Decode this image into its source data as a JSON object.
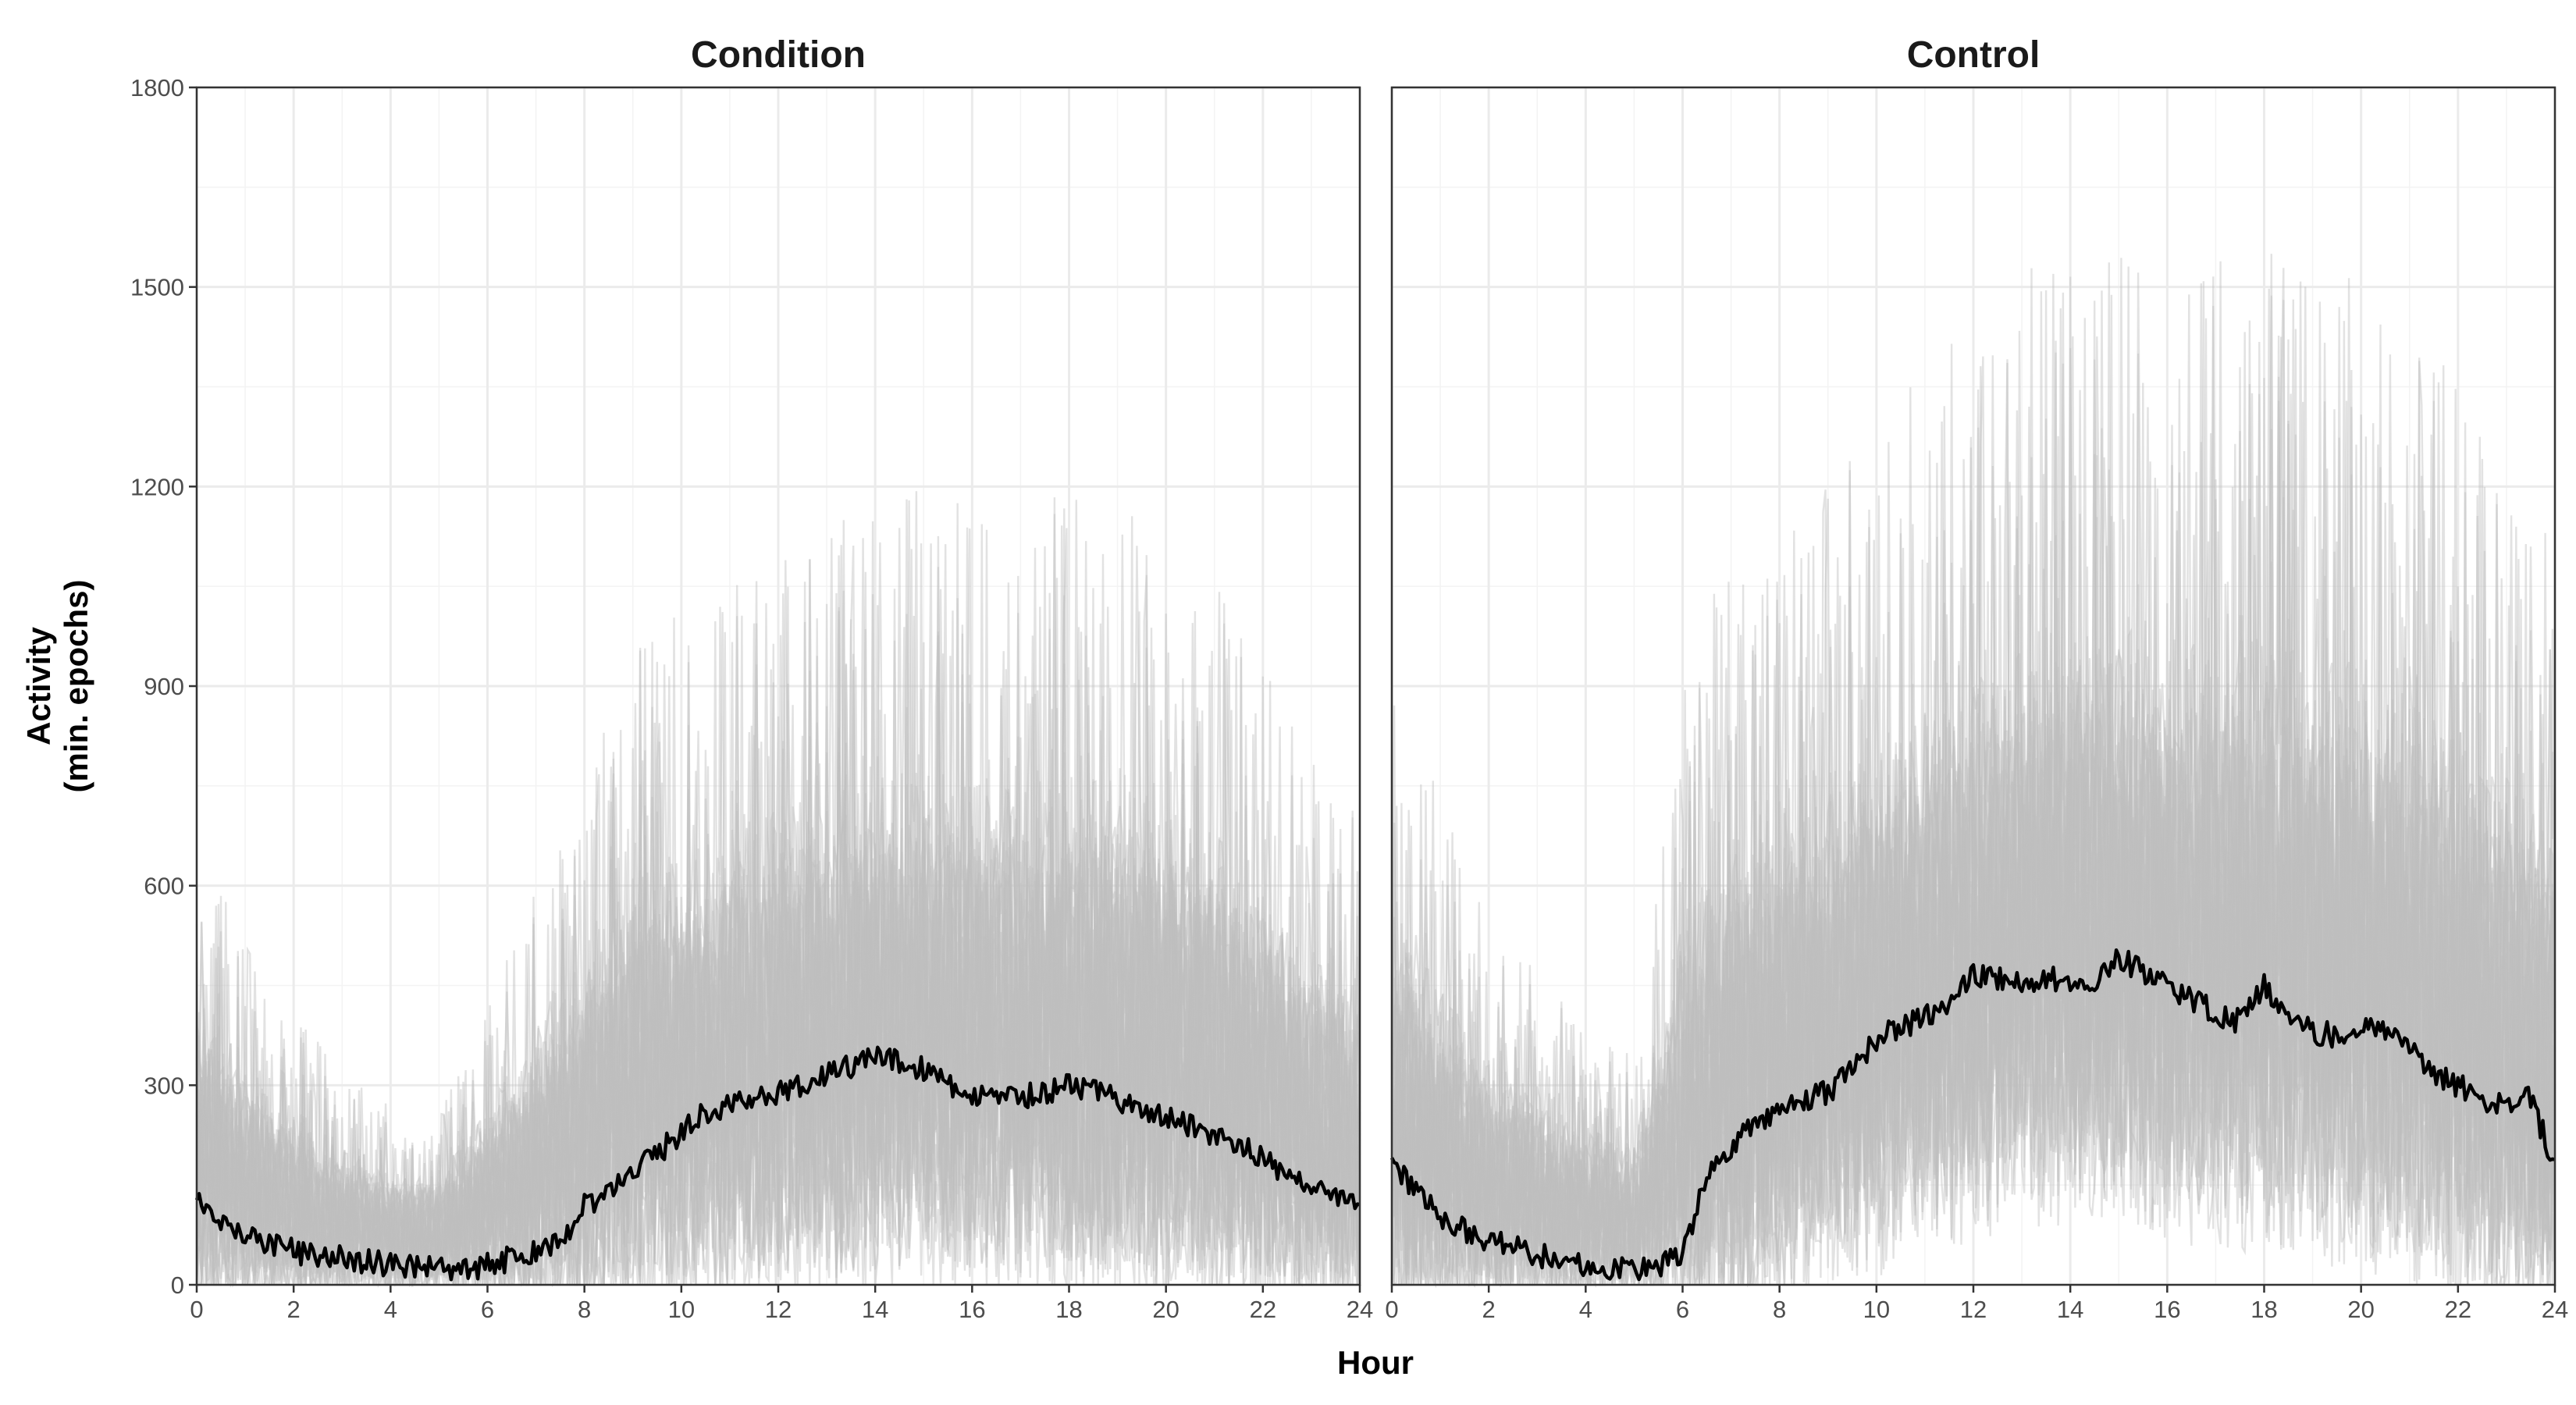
{
  "chart_data": {
    "type": "line",
    "ylabel_line1": "Activity",
    "ylabel_line2": "(min. epochs)",
    "xlabel": "Hour",
    "xlim": [
      0,
      24
    ],
    "ylim": [
      0,
      1800
    ],
    "x_ticks": [
      0,
      2,
      4,
      6,
      8,
      10,
      12,
      14,
      16,
      18,
      20,
      22,
      24
    ],
    "y_ticks": [
      0,
      300,
      600,
      900,
      1200,
      1500,
      1800
    ],
    "grid": true,
    "colors": {
      "individual": "#bebebe",
      "mean": "#000000"
    },
    "panels": [
      {
        "title": "Condition",
        "series": [
          {
            "role": "mean",
            "x": [
              0,
              0.5,
              1,
              1.5,
              2,
              2.5,
              3,
              3.5,
              4,
              4.5,
              5,
              5.5,
              6,
              6.5,
              7,
              7.5,
              8,
              8.5,
              9,
              9.5,
              10,
              10.5,
              11,
              11.5,
              12,
              12.5,
              13,
              13.5,
              14,
              14.5,
              15,
              15.5,
              16,
              16.5,
              17,
              17.5,
              18,
              18.5,
              19,
              19.5,
              20,
              20.5,
              21,
              21.5,
              22,
              22.5,
              23,
              23.5,
              24
            ],
            "y": [
              135,
              100,
              80,
              60,
              50,
              45,
              40,
              35,
              30,
              28,
              25,
              25,
              30,
              40,
              50,
              65,
              120,
              140,
              170,
              195,
              230,
              260,
              270,
              280,
              290,
              300,
              320,
              330,
              340,
              335,
              325,
              300,
              285,
              275,
              280,
              290,
              300,
              295,
              280,
              265,
              250,
              240,
              225,
              210,
              190,
              165,
              145,
              130,
              120
            ]
          },
          {
            "role": "individual-envelope",
            "x": [
              0,
              1,
              2,
              3,
              4,
              5,
              6,
              7,
              8,
              9,
              10,
              11,
              12,
              13,
              14,
              15,
              16,
              17,
              18,
              19,
              20,
              21,
              22,
              23,
              24
            ],
            "y_high": [
              430,
              320,
              260,
              200,
              170,
              160,
              260,
              380,
              480,
              600,
              640,
              660,
              700,
              720,
              740,
              760,
              740,
              720,
              760,
              740,
              700,
              660,
              600,
              500,
              440
            ],
            "y_low": [
              0,
              0,
              0,
              0,
              0,
              0,
              0,
              0,
              10,
              30,
              50,
              70,
              80,
              90,
              95,
              95,
              90,
              85,
              80,
              75,
              65,
              55,
              40,
              25,
              15
            ]
          }
        ]
      },
      {
        "title": "Control",
        "series": [
          {
            "role": "mean",
            "x": [
              0,
              0.5,
              1,
              1.5,
              2,
              2.5,
              3,
              3.5,
              4,
              4.5,
              5,
              5.5,
              6,
              6.5,
              7,
              7.5,
              8,
              8.5,
              9,
              9.5,
              10,
              10.5,
              11,
              11.5,
              12,
              12.5,
              13,
              13.5,
              14,
              14.5,
              15,
              15.5,
              16,
              16.5,
              17,
              17.5,
              18,
              18.5,
              19,
              19.5,
              20,
              20.5,
              21,
              21.5,
              22,
              22.5,
              23,
              23.5,
              24
            ],
            "y": [
              185,
              140,
              105,
              80,
              65,
              55,
              45,
              35,
              25,
              25,
              25,
              30,
              50,
              160,
              210,
              240,
              260,
              280,
              290,
              320,
              370,
              385,
              400,
              420,
              470,
              460,
              455,
              460,
              455,
              460,
              490,
              470,
              450,
              430,
              410,
              395,
              450,
              400,
              380,
              375,
              390,
              385,
              350,
              320,
              300,
              275,
              270,
              280,
              180
            ]
          },
          {
            "role": "individual-envelope",
            "x": [
              0,
              1,
              2,
              3,
              4,
              5,
              6,
              7,
              8,
              9,
              10,
              11,
              12,
              13,
              14,
              15,
              16,
              17,
              18,
              19,
              20,
              21,
              22,
              23,
              24
            ],
            "y_high": [
              600,
              460,
              340,
              300,
              240,
              220,
              560,
              700,
              720,
              760,
              820,
              880,
              920,
              960,
              980,
              1000,
              980,
              960,
              1000,
              940,
              960,
              900,
              860,
              780,
              720
            ],
            "y_low": [
              0,
              0,
              0,
              0,
              0,
              0,
              0,
              20,
              60,
              100,
              130,
              160,
              180,
              200,
              210,
              200,
              190,
              180,
              170,
              160,
              150,
              130,
              100,
              60,
              30
            ]
          }
        ]
      }
    ]
  }
}
